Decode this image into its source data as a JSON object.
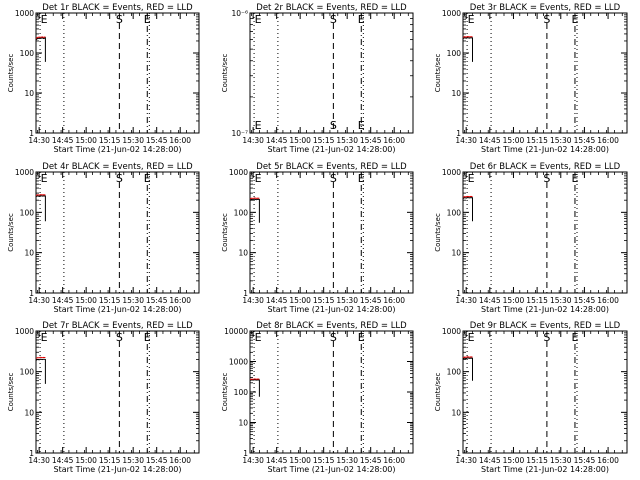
{
  "chart_data": [
    {
      "type": "line",
      "title": "Det 1r BLACK = Events, RED = LLD",
      "xlabel": "Start Time (21-Jun-02 14:28:00)",
      "ylabel": "Counts/sec",
      "ylog": true,
      "ylim": [
        1,
        1000
      ],
      "yticks": [
        1,
        10,
        100,
        1000
      ],
      "ytick_labels": [
        "1",
        "10",
        "100",
        "1000"
      ],
      "xlim": [
        0,
        104
      ],
      "xticks": [
        2,
        17,
        32,
        47,
        62,
        77,
        92
      ],
      "xtick_labels": [
        "14:30",
        "14:45",
        "15:00",
        "15:15",
        "15:30",
        "15:45",
        "16:00"
      ],
      "markers": [
        {
          "x": 2.6,
          "label": "E",
          "style": "dotted"
        },
        {
          "x": 17.8,
          "label": "",
          "style": "dotted"
        },
        {
          "x": 53.2,
          "label": "S",
          "style": "dashed"
        },
        {
          "x": 71.0,
          "label": "E",
          "style": "dashdot"
        },
        {
          "x": 72.3,
          "label": "",
          "style": "dotted"
        }
      ],
      "series": [
        {
          "name": "BLACK = Events",
          "color": "#000000",
          "x": [
            0.0,
            1.0,
            2.0,
            3.0,
            4.0,
            5.0,
            6.0,
            6.0,
            6.0
          ],
          "y": [
            215,
            230,
            235,
            232,
            238,
            229,
            240,
            160,
            60
          ]
        },
        {
          "name": "RED = LLD",
          "color": "#e00000",
          "x": [
            0.0,
            1.0,
            2.0,
            3.0,
            4.0,
            5.0,
            6.0
          ],
          "y": [
            230,
            245,
            250,
            248,
            252,
            244,
            255
          ]
        }
      ]
    },
    {
      "type": "line",
      "title": "Det 2r BLACK = Events, RED = LLD",
      "xlabel": "Start Time (21-Jun-02 14:28:00)",
      "ylabel": "Counts/sec",
      "ylog": true,
      "ylim": [
        1e-07,
        1e-06
      ],
      "yticks": [
        1e-07,
        1e-06
      ],
      "ytick_labels": [
        "10⁻⁷",
        "10⁻⁶"
      ],
      "xlim": [
        0,
        104
      ],
      "xticks": [
        2,
        17,
        32,
        47,
        62,
        77,
        92
      ],
      "xtick_labels": [
        "14:30",
        "14:45",
        "15:00",
        "15:15",
        "15:30",
        "15:45",
        "16:00"
      ],
      "markers": [
        {
          "x": 2.6,
          "label": "E",
          "style": "dotted"
        },
        {
          "x": 17.8,
          "label": "",
          "style": "dotted"
        },
        {
          "x": 53.2,
          "label": "S",
          "style": "dashed"
        },
        {
          "x": 71.0,
          "label": "E",
          "style": "dashdot"
        },
        {
          "x": 72.3,
          "label": "",
          "style": "dotted"
        }
      ],
      "series": []
    },
    {
      "type": "line",
      "title": "Det 3r BLACK = Events, RED = LLD",
      "xlabel": "Start Time (21-Jun-02 14:28:00)",
      "ylabel": "Counts/sec",
      "ylog": true,
      "ylim": [
        1,
        1000
      ],
      "yticks": [
        1,
        10,
        100,
        1000
      ],
      "ytick_labels": [
        "1",
        "10",
        "100",
        "1000"
      ],
      "xlim": [
        0,
        104
      ],
      "xticks": [
        2,
        17,
        32,
        47,
        62,
        77,
        92
      ],
      "xtick_labels": [
        "14:30",
        "14:45",
        "15:00",
        "15:15",
        "15:30",
        "15:45",
        "16:00"
      ],
      "markers": [
        {
          "x": 2.6,
          "label": "E",
          "style": "dotted"
        },
        {
          "x": 17.8,
          "label": "",
          "style": "dotted"
        },
        {
          "x": 53.2,
          "label": "S",
          "style": "dashed"
        },
        {
          "x": 71.0,
          "label": "E",
          "style": "dashdot"
        },
        {
          "x": 72.3,
          "label": "",
          "style": "dotted"
        }
      ],
      "series": [
        {
          "name": "BLACK = Events",
          "color": "#000000",
          "x": [
            0.0,
            1.0,
            2.0,
            3.0,
            4.0,
            5.0,
            6.0,
            6.0,
            6.0
          ],
          "y": [
            230,
            240,
            235,
            242,
            236,
            240,
            238,
            160,
            60
          ]
        },
        {
          "name": "RED = LLD",
          "color": "#e00000",
          "x": [
            0.0,
            1.0,
            2.0,
            3.0,
            4.0,
            5.0,
            6.0
          ],
          "y": [
            245,
            255,
            250,
            258,
            252,
            256,
            254
          ]
        }
      ]
    },
    {
      "type": "line",
      "title": "Det 4r BLACK = Events, RED = LLD",
      "xlabel": "Start Time (21-Jun-02 14:28:00)",
      "ylabel": "Counts/sec",
      "ylog": true,
      "ylim": [
        1,
        1000
      ],
      "yticks": [
        1,
        10,
        100,
        1000
      ],
      "ytick_labels": [
        "1",
        "10",
        "100",
        "1000"
      ],
      "xlim": [
        0,
        104
      ],
      "xticks": [
        2,
        17,
        32,
        47,
        62,
        77,
        92
      ],
      "xtick_labels": [
        "14:30",
        "14:45",
        "15:00",
        "15:15",
        "15:30",
        "15:45",
        "16:00"
      ],
      "markers": [
        {
          "x": 2.6,
          "label": "E",
          "style": "dotted"
        },
        {
          "x": 17.8,
          "label": "",
          "style": "dotted"
        },
        {
          "x": 53.2,
          "label": "S",
          "style": "dashed"
        },
        {
          "x": 71.0,
          "label": "E",
          "style": "dashdot"
        },
        {
          "x": 72.3,
          "label": "",
          "style": "dotted"
        }
      ],
      "series": [
        {
          "name": "BLACK = Events",
          "color": "#000000",
          "x": [
            0.0,
            1.0,
            2.0,
            3.0,
            4.0,
            5.0,
            6.0,
            6.0,
            6.0
          ],
          "y": [
            245,
            255,
            250,
            258,
            252,
            256,
            254,
            160,
            60
          ]
        },
        {
          "name": "RED = LLD",
          "color": "#e00000",
          "x": [
            0.0,
            1.0,
            2.0,
            3.0,
            4.0,
            5.0,
            6.0
          ],
          "y": [
            262,
            272,
            268,
            275,
            270,
            274,
            271
          ]
        }
      ]
    },
    {
      "type": "line",
      "title": "Det 5r BLACK = Events, RED = LLD",
      "xlabel": "Start Time (21-Jun-02 14:28:00)",
      "ylabel": "Counts/sec",
      "ylog": true,
      "ylim": [
        1,
        1000
      ],
      "yticks": [
        1,
        10,
        100,
        1000
      ],
      "ytick_labels": [
        "1",
        "10",
        "100",
        "1000"
      ],
      "xlim": [
        0,
        104
      ],
      "xticks": [
        2,
        17,
        32,
        47,
        62,
        77,
        92
      ],
      "xtick_labels": [
        "14:30",
        "14:45",
        "15:00",
        "15:15",
        "15:30",
        "15:45",
        "16:00"
      ],
      "markers": [
        {
          "x": 2.6,
          "label": "E",
          "style": "dotted"
        },
        {
          "x": 17.8,
          "label": "",
          "style": "dotted"
        },
        {
          "x": 53.2,
          "label": "S",
          "style": "dashed"
        },
        {
          "x": 71.0,
          "label": "E",
          "style": "dashdot"
        },
        {
          "x": 72.3,
          "label": "",
          "style": "dotted"
        }
      ],
      "series": [
        {
          "name": "BLACK = Events",
          "color": "#000000",
          "x": [
            0.0,
            1.0,
            2.0,
            3.0,
            4.0,
            5.0,
            6.0,
            6.0,
            6.0
          ],
          "y": [
            200,
            210,
            205,
            212,
            206,
            210,
            208,
            140,
            55
          ]
        },
        {
          "name": "RED = LLD",
          "color": "#e00000",
          "x": [
            0.0,
            1.0,
            2.0,
            3.0,
            4.0,
            5.0,
            6.0
          ],
          "y": [
            215,
            225,
            220,
            228,
            222,
            226,
            224
          ]
        }
      ]
    },
    {
      "type": "line",
      "title": "Det 6r BLACK = Events, RED = LLD",
      "xlabel": "Start Time (21-Jun-02 14:28:00)",
      "ylabel": "Counts/sec",
      "ylog": true,
      "ylim": [
        1,
        1000
      ],
      "yticks": [
        1,
        10,
        100,
        1000
      ],
      "ytick_labels": [
        "1",
        "10",
        "100",
        "1000"
      ],
      "xlim": [
        0,
        104
      ],
      "xticks": [
        2,
        17,
        32,
        47,
        62,
        77,
        92
      ],
      "xtick_labels": [
        "14:30",
        "14:45",
        "15:00",
        "15:15",
        "15:30",
        "15:45",
        "16:00"
      ],
      "markers": [
        {
          "x": 2.6,
          "label": "E",
          "style": "dotted"
        },
        {
          "x": 17.8,
          "label": "",
          "style": "dotted"
        },
        {
          "x": 53.2,
          "label": "S",
          "style": "dashed"
        },
        {
          "x": 71.0,
          "label": "E",
          "style": "dashdot"
        },
        {
          "x": 72.3,
          "label": "",
          "style": "dotted"
        }
      ],
      "series": [
        {
          "name": "BLACK = Events",
          "color": "#000000",
          "x": [
            0.0,
            1.0,
            2.0,
            3.0,
            4.0,
            5.0,
            6.0,
            6.0,
            6.0
          ],
          "y": [
            220,
            230,
            226,
            233,
            228,
            232,
            230,
            150,
            60
          ]
        },
        {
          "name": "RED = LLD",
          "color": "#e00000",
          "x": [
            0.0,
            1.0,
            2.0,
            3.0,
            4.0,
            5.0,
            6.0
          ],
          "y": [
            236,
            246,
            242,
            249,
            244,
            248,
            246
          ]
        }
      ]
    },
    {
      "type": "line",
      "title": "Det 7r BLACK = Events, RED = LLD",
      "xlabel": "Start Time (21-Jun-02 14:28:00)",
      "ylabel": "Counts/sec",
      "ylog": true,
      "ylim": [
        1,
        1000
      ],
      "yticks": [
        1,
        10,
        100,
        1000
      ],
      "ytick_labels": [
        "1",
        "10",
        "100",
        "1000"
      ],
      "xlim": [
        0,
        104
      ],
      "xticks": [
        2,
        17,
        32,
        47,
        62,
        77,
        92
      ],
      "xtick_labels": [
        "14:30",
        "14:45",
        "15:00",
        "15:15",
        "15:30",
        "15:45",
        "16:00"
      ],
      "markers": [
        {
          "x": 2.6,
          "label": "E",
          "style": "dotted"
        },
        {
          "x": 17.8,
          "label": "",
          "style": "dotted"
        },
        {
          "x": 53.2,
          "label": "S",
          "style": "dashed"
        },
        {
          "x": 71.0,
          "label": "E",
          "style": "dashdot"
        },
        {
          "x": 72.3,
          "label": "",
          "style": "dotted"
        }
      ],
      "series": [
        {
          "name": "BLACK = Events",
          "color": "#000000",
          "x": [
            0.0,
            1.0,
            2.0,
            3.0,
            4.0,
            5.0,
            6.0,
            6.0,
            6.0
          ],
          "y": [
            190,
            200,
            196,
            203,
            198,
            202,
            200,
            120,
            50
          ]
        },
        {
          "name": "RED = LLD",
          "color": "#e00000",
          "x": [
            0.0,
            1.0,
            2.0,
            3.0,
            4.0,
            5.0,
            6.0
          ],
          "y": [
            212,
            222,
            218,
            226,
            220,
            224,
            222
          ]
        }
      ]
    },
    {
      "type": "line",
      "title": "Det 8r BLACK = Events, RED = LLD",
      "xlabel": "Start Time (21-Jun-02 14:28:00)",
      "ylabel": "Counts/sec",
      "ylog": true,
      "ylim": [
        1,
        10000
      ],
      "yticks": [
        1,
        10,
        100,
        1000,
        10000
      ],
      "ytick_labels": [
        "1",
        "10",
        "100",
        "1000",
        "10000"
      ],
      "xlim": [
        0,
        104
      ],
      "xticks": [
        2,
        17,
        32,
        47,
        62,
        77,
        92
      ],
      "xtick_labels": [
        "14:30",
        "14:45",
        "15:00",
        "15:15",
        "15:30",
        "15:45",
        "16:00"
      ],
      "markers": [
        {
          "x": 2.6,
          "label": "E",
          "style": "dotted"
        },
        {
          "x": 17.8,
          "label": "",
          "style": "dotted"
        },
        {
          "x": 53.2,
          "label": "S",
          "style": "dashed"
        },
        {
          "x": 71.0,
          "label": "E",
          "style": "dashdot"
        },
        {
          "x": 72.3,
          "label": "",
          "style": "dotted"
        }
      ],
      "series": [
        {
          "name": "BLACK = Events",
          "color": "#000000",
          "x": [
            0.0,
            1.0,
            2.0,
            3.0,
            4.0,
            5.0,
            6.0,
            6.0,
            6.0
          ],
          "y": [
            240,
            250,
            245,
            252,
            246,
            250,
            248,
            150,
            70
          ]
        },
        {
          "name": "RED = LLD",
          "color": "#e00000",
          "x": [
            0.0,
            1.0,
            2.0,
            3.0,
            4.0,
            5.0,
            6.0
          ],
          "y": [
            255,
            265,
            260,
            268,
            262,
            266,
            264
          ]
        }
      ]
    },
    {
      "type": "line",
      "title": "Det 9r BLACK = Events, RED = LLD",
      "xlabel": "Start Time (21-Jun-02 14:28:00)",
      "ylabel": "Counts/sec",
      "ylog": true,
      "ylim": [
        1,
        1000
      ],
      "yticks": [
        1,
        10,
        100,
        1000
      ],
      "ytick_labels": [
        "1",
        "10",
        "100",
        "1000"
      ],
      "xlim": [
        0,
        104
      ],
      "xticks": [
        2,
        17,
        32,
        47,
        62,
        77,
        92
      ],
      "xtick_labels": [
        "14:30",
        "14:45",
        "15:00",
        "15:15",
        "15:30",
        "15:45",
        "16:00"
      ],
      "markers": [
        {
          "x": 2.6,
          "label": "E",
          "style": "dotted"
        },
        {
          "x": 17.8,
          "label": "",
          "style": "dotted"
        },
        {
          "x": 53.2,
          "label": "S",
          "style": "dashed"
        },
        {
          "x": 71.0,
          "label": "E",
          "style": "dashdot"
        },
        {
          "x": 72.3,
          "label": "",
          "style": "dotted"
        }
      ],
      "series": [
        {
          "name": "BLACK = Events",
          "color": "#000000",
          "x": [
            0.0,
            1.0,
            2.0,
            3.0,
            4.0,
            5.0,
            6.0,
            6.0,
            6.0
          ],
          "y": [
            205,
            215,
            210,
            218,
            212,
            216,
            214,
            140,
            60
          ]
        },
        {
          "name": "RED = LLD",
          "color": "#e00000",
          "x": [
            0.0,
            1.0,
            2.0,
            3.0,
            4.0,
            5.0,
            6.0
          ],
          "y": [
            220,
            230,
            225,
            233,
            227,
            231,
            229
          ]
        }
      ]
    }
  ]
}
